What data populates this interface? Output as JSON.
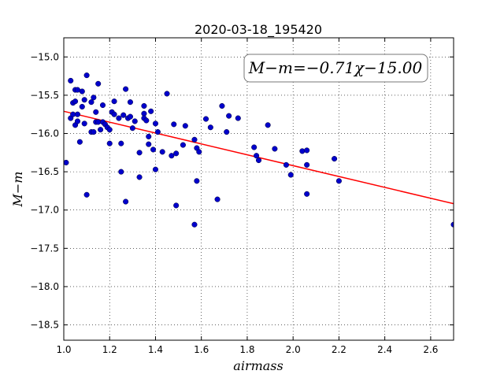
{
  "chart_data": {
    "type": "scatter",
    "title": "2020-03-18_195420",
    "xlabel": "airmass",
    "ylabel": "M−m",
    "xlim": [
      1.0,
      2.7
    ],
    "ylim": [
      -18.7,
      -14.75
    ],
    "y_inverted": true,
    "xticks": [
      "1.0",
      "1.2",
      "1.4",
      "1.6",
      "1.8",
      "2.0",
      "2.2",
      "2.4",
      "2.6"
    ],
    "yticks": [
      "−15.0",
      "−15.5",
      "−16.0",
      "−16.5",
      "−17.0",
      "−17.5",
      "−18.0",
      "−18.5"
    ],
    "grid": true,
    "annotation": "M−m=−0.71χ−15.00",
    "fit": {
      "slope": -0.71,
      "intercept": -15.0,
      "color": "#ff0000"
    },
    "point_color": "#0000cc",
    "points": [
      [
        1.01,
        -16.38
      ],
      [
        1.03,
        -15.31
      ],
      [
        1.03,
        -15.8
      ],
      [
        1.04,
        -15.75
      ],
      [
        1.04,
        -15.6
      ],
      [
        1.05,
        -15.89
      ],
      [
        1.05,
        -15.43
      ],
      [
        1.05,
        -15.58
      ],
      [
        1.06,
        -15.75
      ],
      [
        1.06,
        -15.43
      ],
      [
        1.06,
        -15.84
      ],
      [
        1.07,
        -16.11
      ],
      [
        1.08,
        -15.45
      ],
      [
        1.08,
        -15.65
      ],
      [
        1.09,
        -15.87
      ],
      [
        1.09,
        -15.56
      ],
      [
        1.1,
        -16.8
      ],
      [
        1.1,
        -15.24
      ],
      [
        1.12,
        -15.59
      ],
      [
        1.12,
        -15.98
      ],
      [
        1.13,
        -15.53
      ],
      [
        1.13,
        -15.98
      ],
      [
        1.14,
        -15.72
      ],
      [
        1.14,
        -15.85
      ],
      [
        1.15,
        -15.35
      ],
      [
        1.15,
        -15.85
      ],
      [
        1.16,
        -15.95
      ],
      [
        1.17,
        -15.63
      ],
      [
        1.17,
        -15.85
      ],
      [
        1.18,
        -15.88
      ],
      [
        1.19,
        -15.92
      ],
      [
        1.2,
        -15.95
      ],
      [
        1.2,
        -16.13
      ],
      [
        1.21,
        -15.72
      ],
      [
        1.22,
        -15.75
      ],
      [
        1.22,
        -15.58
      ],
      [
        1.24,
        -15.8
      ],
      [
        1.25,
        -16.5
      ],
      [
        1.25,
        -16.13
      ],
      [
        1.26,
        -15.76
      ],
      [
        1.27,
        -15.42
      ],
      [
        1.27,
        -16.89
      ],
      [
        1.28,
        -15.8
      ],
      [
        1.29,
        -15.78
      ],
      [
        1.29,
        -15.59
      ],
      [
        1.3,
        -15.93
      ],
      [
        1.31,
        -15.84
      ],
      [
        1.33,
        -16.25
      ],
      [
        1.33,
        -16.57
      ],
      [
        1.35,
        -15.64
      ],
      [
        1.35,
        -15.74
      ],
      [
        1.35,
        -15.8
      ],
      [
        1.36,
        -15.83
      ],
      [
        1.37,
        -16.04
      ],
      [
        1.37,
        -16.14
      ],
      [
        1.38,
        -15.71
      ],
      [
        1.39,
        -16.21
      ],
      [
        1.4,
        -15.87
      ],
      [
        1.4,
        -16.47
      ],
      [
        1.41,
        -15.98
      ],
      [
        1.43,
        -16.24
      ],
      [
        1.45,
        -15.48
      ],
      [
        1.47,
        -16.29
      ],
      [
        1.48,
        -15.88
      ],
      [
        1.49,
        -16.26
      ],
      [
        1.49,
        -16.94
      ],
      [
        1.52,
        -16.15
      ],
      [
        1.53,
        -15.9
      ],
      [
        1.57,
        -16.08
      ],
      [
        1.57,
        -17.19
      ],
      [
        1.58,
        -16.62
      ],
      [
        1.58,
        -16.19
      ],
      [
        1.59,
        -16.24
      ],
      [
        1.62,
        -15.81
      ],
      [
        1.64,
        -15.92
      ],
      [
        1.67,
        -16.86
      ],
      [
        1.69,
        -15.64
      ],
      [
        1.71,
        -15.98
      ],
      [
        1.72,
        -15.77
      ],
      [
        1.76,
        -15.8
      ],
      [
        1.83,
        -16.18
      ],
      [
        1.84,
        -16.29
      ],
      [
        1.85,
        -16.35
      ],
      [
        1.89,
        -15.89
      ],
      [
        1.92,
        -16.2
      ],
      [
        1.97,
        -16.41
      ],
      [
        1.99,
        -16.54
      ],
      [
        2.04,
        -16.23
      ],
      [
        2.06,
        -16.22
      ],
      [
        2.06,
        -16.41
      ],
      [
        2.06,
        -16.79
      ],
      [
        2.18,
        -16.33
      ],
      [
        2.2,
        -16.62
      ],
      [
        2.7,
        -17.19
      ]
    ]
  }
}
